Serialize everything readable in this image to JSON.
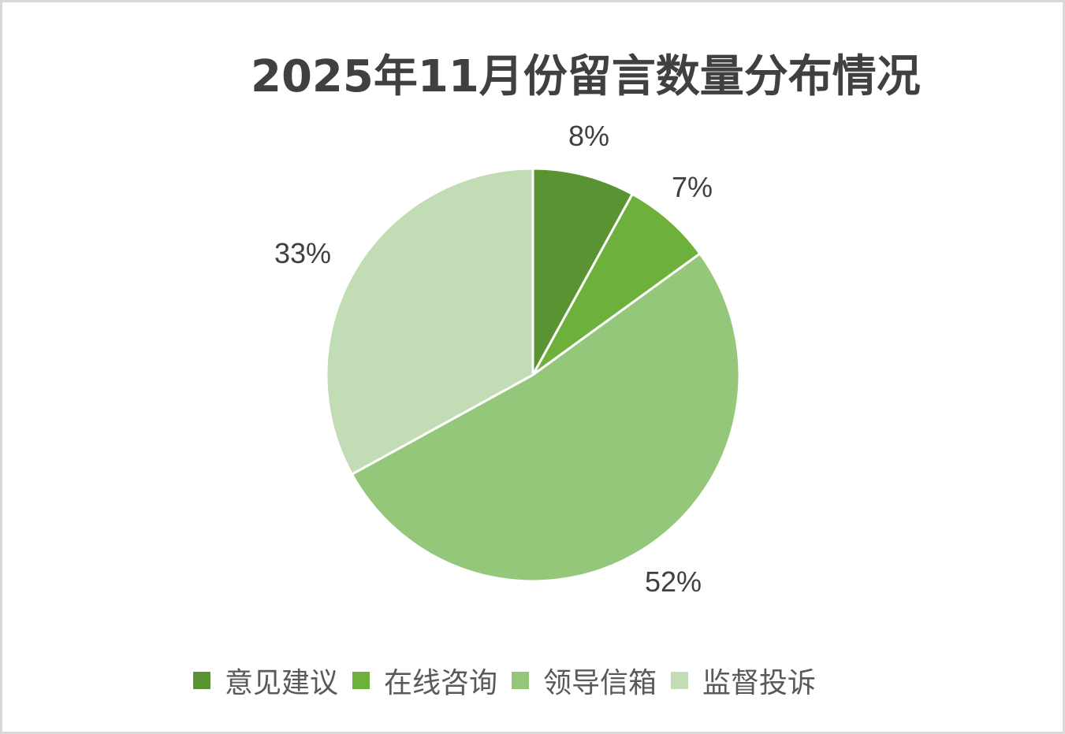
{
  "chart_data": {
    "type": "pie",
    "title": "2025年11月份留言数量分布情况",
    "categories": [
      "意见建议",
      "在线咨询",
      "领导信箱",
      "监督投诉"
    ],
    "values": [
      8,
      7,
      52,
      33
    ],
    "labels": [
      "8%",
      "7%",
      "52%",
      "33%"
    ],
    "colors": [
      "#5a9432",
      "#6db13c",
      "#95c77a",
      "#c2ddb5"
    ],
    "legend_position": "bottom",
    "start_angle": "12 o'clock, clockwise"
  },
  "title": "2025年11月份留言数量分布情况",
  "legend": [
    {
      "label": "意见建议",
      "color": "#5a9432"
    },
    {
      "label": "在线咨询",
      "color": "#6db13c"
    },
    {
      "label": "领导信箱",
      "color": "#95c77a"
    },
    {
      "label": "监督投诉",
      "color": "#c2ddb5"
    }
  ],
  "data_labels": [
    "8%",
    "7%",
    "52%",
    "33%"
  ]
}
